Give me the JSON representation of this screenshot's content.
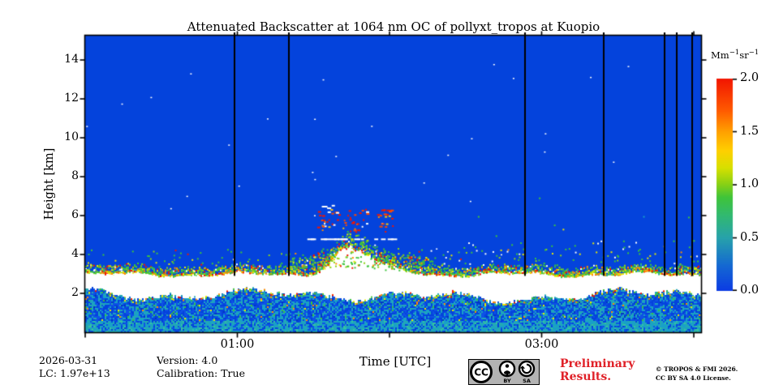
{
  "chart_data": {
    "type": "heatmap",
    "title": "Attenuated Backscatter at 1064 nm OC of pollyxt_tropos at Kuopio",
    "xlabel": "Time [UTC]",
    "ylabel": "Height [km]",
    "x_axis": {
      "start_hour": 0,
      "end_hour": 4.048,
      "tick_hours": [
        0,
        1,
        2,
        3,
        4
      ],
      "labeled_ticks": [
        {
          "hour": 1,
          "label": "01:00"
        },
        {
          "hour": 3,
          "label": "03:00"
        }
      ]
    },
    "y_axis": {
      "min_km": 0,
      "max_km": 15.25,
      "ticks": [
        2,
        4,
        6,
        8,
        10,
        12,
        14
      ]
    },
    "colorbar": {
      "min": 0,
      "max": 2,
      "ticks": [
        {
          "label": "2.0",
          "value": 2.0
        },
        {
          "label": "1.5",
          "value": 1.5
        },
        {
          "label": "1.0",
          "value": 1.0
        },
        {
          "label": "0.5",
          "value": 0.5
        },
        {
          "label": "0.0",
          "value": 0.0
        }
      ],
      "unit": {
        "b1": "Mm",
        "e1": "−1",
        "b2": "sr",
        "e2": "−1"
      },
      "stops": [
        [
          0,
          "#0b3be4"
        ],
        [
          0.12,
          "#1569d2"
        ],
        [
          0.25,
          "#27a2ab"
        ],
        [
          0.36,
          "#32ba6e"
        ],
        [
          0.44,
          "#3fc43a"
        ],
        [
          0.5,
          "#86d016"
        ],
        [
          0.58,
          "#d8e000"
        ],
        [
          0.66,
          "#ffd000"
        ],
        [
          0.75,
          "#ffa000"
        ],
        [
          0.85,
          "#ff5a00"
        ],
        [
          1,
          "#f21500"
        ]
      ]
    },
    "background_color": "#0443dc",
    "calibration_line_hours": [
      0.98,
      1.34,
      2.89,
      3.41,
      3.81,
      3.89,
      3.99
    ],
    "features": {
      "aerosol_top_km": 3.05,
      "saturated_white_band_km": [
        1.85,
        3.0
      ],
      "boundary_layer_top_km": 1.9,
      "plume": {
        "start_hour": 1.4,
        "peak_hour": 1.73,
        "end_hour": 2.18,
        "white_top_km": 4.35,
        "speckle_top_km": 6.4
      },
      "speckle_palette": [
        "#3cc43c",
        "#8ed414",
        "#e8e800",
        "#ffc800",
        "#ff8c00",
        "#ff4a00",
        "#f21500",
        "#23a8b4",
        "#18a0c8",
        "#ffffff"
      ]
    }
  },
  "annotations": {
    "date": "2026-03-31",
    "lidar_constant": "LC: 1.97e+13",
    "version": "Version: 4.0",
    "calibration": "Calibration: True",
    "preliminary": [
      "Preliminary",
      "Results."
    ],
    "copyright": [
      "© TROPOS & FMI 2026.",
      "CC BY SA 4.0 License."
    ],
    "license_badge": {
      "cc": "CC",
      "by": "BY",
      "sa": "SA"
    }
  }
}
